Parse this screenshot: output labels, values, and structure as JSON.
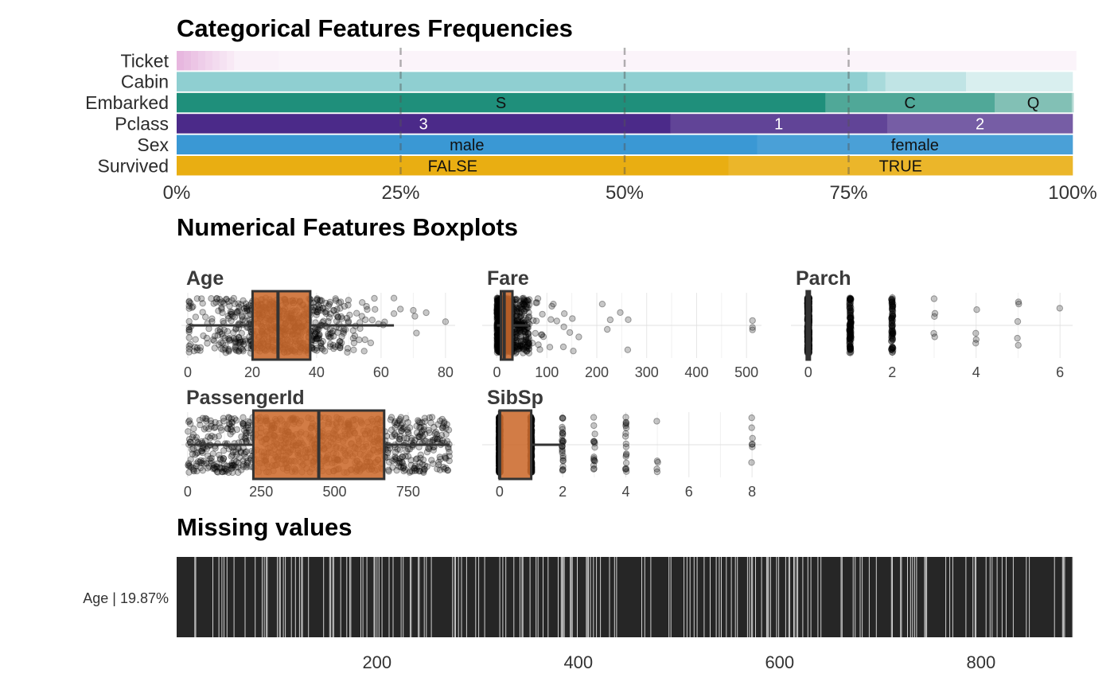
{
  "chart_data": [
    {
      "type": "bar",
      "orientation": "horizontal-stacked-100",
      "title": "Categorical Features Frequencies",
      "x_ticks": [
        "0%",
        "25%",
        "50%",
        "75%",
        "100%"
      ],
      "reference_lines": [
        25,
        50,
        75
      ],
      "features": [
        {
          "name": "Ticket",
          "color": "#e7b7df",
          "segments": [
            {
              "label": "",
              "value": 0.8
            },
            {
              "label": "",
              "value": 0.8
            },
            {
              "label": "",
              "value": 0.8
            },
            {
              "label": "",
              "value": 0.8
            },
            {
              "label": "",
              "value": 0.8
            },
            {
              "label": "",
              "value": 0.8
            },
            {
              "label": "",
              "value": 0.8
            },
            {
              "label": "",
              "value": 0.8
            },
            {
              "label": "",
              "value": 5.0
            },
            {
              "label": "",
              "value": 7.0
            },
            {
              "label": "",
              "value": 21.0
            },
            {
              "label": "",
              "value": 61.0
            }
          ]
        },
        {
          "name": "Cabin",
          "color": "#8fcfd1",
          "segments": [
            {
              "label": "",
              "value": 77.1
            },
            {
              "label": "",
              "value": 2.0
            },
            {
              "label": "",
              "value": 9.0
            },
            {
              "label": "",
              "value": 11.9
            }
          ]
        },
        {
          "name": "Embarked",
          "color": "#1f8f7b",
          "segments": [
            {
              "label": "S",
              "value": 72.4
            },
            {
              "label": "C",
              "value": 18.9
            },
            {
              "label": "Q",
              "value": 8.6
            },
            {
              "label": "",
              "value": 0.2
            }
          ]
        },
        {
          "name": "Pclass",
          "color": "#4b2a89",
          "segments": [
            {
              "label": "3",
              "value": 55.1
            },
            {
              "label": "1",
              "value": 24.2
            },
            {
              "label": "2",
              "value": 20.7
            }
          ]
        },
        {
          "name": "Sex",
          "color": "#3a98d4",
          "segments": [
            {
              "label": "male",
              "value": 64.8
            },
            {
              "label": "female",
              "value": 35.2
            }
          ]
        },
        {
          "name": "Survived",
          "color": "#e9ae12",
          "segments": [
            {
              "label": "FALSE",
              "value": 61.6
            },
            {
              "label": "TRUE",
              "value": 38.4
            }
          ]
        }
      ]
    },
    {
      "type": "boxplot",
      "title": "Numerical Features Boxplots",
      "box_color": "#cc6a2c",
      "panels": [
        {
          "name": "Age",
          "ticks": [
            0,
            20,
            40,
            60,
            80
          ],
          "xlim": [
            -0.5,
            83
          ],
          "min": 0.42,
          "q1": 20.1,
          "median": 28,
          "q3": 38,
          "whisker_high": 64,
          "max": 80,
          "outliers": [
            66,
            70,
            70.5,
            71,
            74,
            80
          ],
          "n_points": 714
        },
        {
          "name": "Fare",
          "ticks": [
            0,
            100,
            200,
            300,
            400,
            500
          ],
          "xlim": [
            -20,
            530
          ],
          "min": 0,
          "q1": 7.9,
          "median": 14.45,
          "q3": 31,
          "whisker_high": 65,
          "max": 512.33,
          "outliers": [
            71,
            73,
            77,
            78,
            79,
            80,
            82,
            83,
            86,
            89,
            90,
            91,
            93,
            106,
            108,
            110,
            113,
            120,
            133,
            134,
            135,
            146,
            151,
            153,
            164,
            211,
            221,
            227,
            247,
            262,
            263,
            512,
            512,
            512
          ],
          "n_points": 891
        },
        {
          "name": "Parch",
          "ticks": [
            0,
            2,
            4,
            6
          ],
          "xlim": [
            -0.3,
            6.3
          ],
          "min": 0,
          "q1": 0,
          "median": 0,
          "q3": 0,
          "whisker_high": 0,
          "max": 6,
          "counts": [
            [
              0,
              678
            ],
            [
              1,
              118
            ],
            [
              2,
              80
            ],
            [
              3,
              5
            ],
            [
              4,
              4
            ],
            [
              5,
              5
            ],
            [
              6,
              1
            ]
          ]
        },
        {
          "name": "PassengerId",
          "ticks": [
            0,
            250,
            500,
            750
          ],
          "xlim": [
            -5,
            910
          ],
          "min": 1,
          "q1": 223.5,
          "median": 446,
          "q3": 668.5,
          "whisker_high": 891,
          "max": 891,
          "n_points": 891
        },
        {
          "name": "SibSp",
          "ticks": [
            0,
            2,
            4,
            6,
            8
          ],
          "xlim": [
            -0.4,
            8.3
          ],
          "min": 0,
          "q1": 0,
          "median": 0,
          "q3": 1,
          "whisker_high": 2,
          "max": 8,
          "counts": [
            [
              0,
              608
            ],
            [
              1,
              209
            ],
            [
              2,
              28
            ],
            [
              3,
              16
            ],
            [
              4,
              18
            ],
            [
              5,
              5
            ],
            [
              8,
              7
            ]
          ]
        }
      ]
    },
    {
      "type": "heatmap",
      "title": "Missing values",
      "row_label": "Age | 19.87%",
      "x_ticks": [
        "200",
        "400",
        "600",
        "800"
      ],
      "xlim": [
        1,
        891
      ],
      "n_rows_total": 891,
      "missing_count": 177
    }
  ]
}
